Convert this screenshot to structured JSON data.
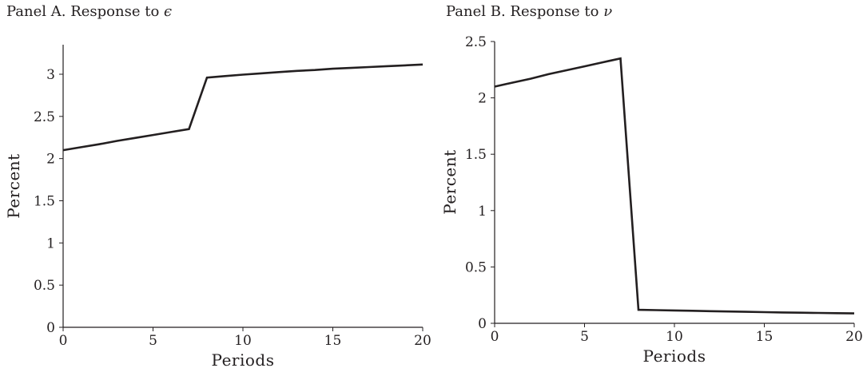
{
  "chart_data": [
    {
      "type": "line",
      "title_prefix": "Panel A. Response to ",
      "title_symbol": "ϵ",
      "xlabel": "Periods",
      "ylabel": "Percent",
      "xlim": [
        0,
        20
      ],
      "ylim": [
        0,
        3.35
      ],
      "xticks": [
        0,
        5,
        10,
        15,
        20
      ],
      "xtick_labels": [
        "0",
        "5",
        "10",
        "15",
        "20"
      ],
      "yticks": [
        0,
        0.5,
        1,
        1.5,
        2,
        2.5,
        3
      ],
      "ytick_labels": [
        "0",
        "0.5",
        "1",
        "1.5",
        "2",
        "2.5",
        "3"
      ],
      "grid": false,
      "line_color": "#231f20",
      "series": [
        {
          "x": [
            0,
            1,
            2,
            3,
            4,
            5,
            6,
            7,
            8,
            9,
            10,
            11,
            12,
            13,
            14,
            15,
            16,
            17,
            18,
            19,
            20
          ],
          "y": [
            2.1,
            2.135,
            2.17,
            2.21,
            2.245,
            2.28,
            2.315,
            2.35,
            2.96,
            2.978,
            2.995,
            3.01,
            3.025,
            3.04,
            3.05,
            3.065,
            3.075,
            3.085,
            3.095,
            3.105,
            3.115
          ]
        }
      ]
    },
    {
      "type": "line",
      "title_prefix": "Panel B. Response to ",
      "title_symbol": "ν",
      "xlabel": "Periods",
      "ylabel": "Percent",
      "xlim": [
        0,
        20
      ],
      "ylim": [
        0,
        2.5
      ],
      "xticks": [
        0,
        5,
        10,
        15,
        20
      ],
      "xtick_labels": [
        "0",
        "5",
        "10",
        "15",
        "20"
      ],
      "yticks": [
        0,
        0.5,
        1,
        1.5,
        2,
        2.5
      ],
      "ytick_labels": [
        "0",
        "0.5",
        "1",
        "1.5",
        "2",
        "2.5"
      ],
      "grid": false,
      "line_color": "#231f20",
      "series": [
        {
          "x": [
            0,
            1,
            2,
            3,
            4,
            5,
            6,
            7,
            8,
            9,
            10,
            11,
            12,
            13,
            14,
            15,
            16,
            17,
            18,
            19,
            20
          ],
          "y": [
            2.1,
            2.135,
            2.17,
            2.21,
            2.245,
            2.28,
            2.315,
            2.35,
            0.12,
            0.117,
            0.114,
            0.111,
            0.108,
            0.105,
            0.102,
            0.099,
            0.096,
            0.094,
            0.092,
            0.09,
            0.088
          ]
        }
      ]
    }
  ]
}
